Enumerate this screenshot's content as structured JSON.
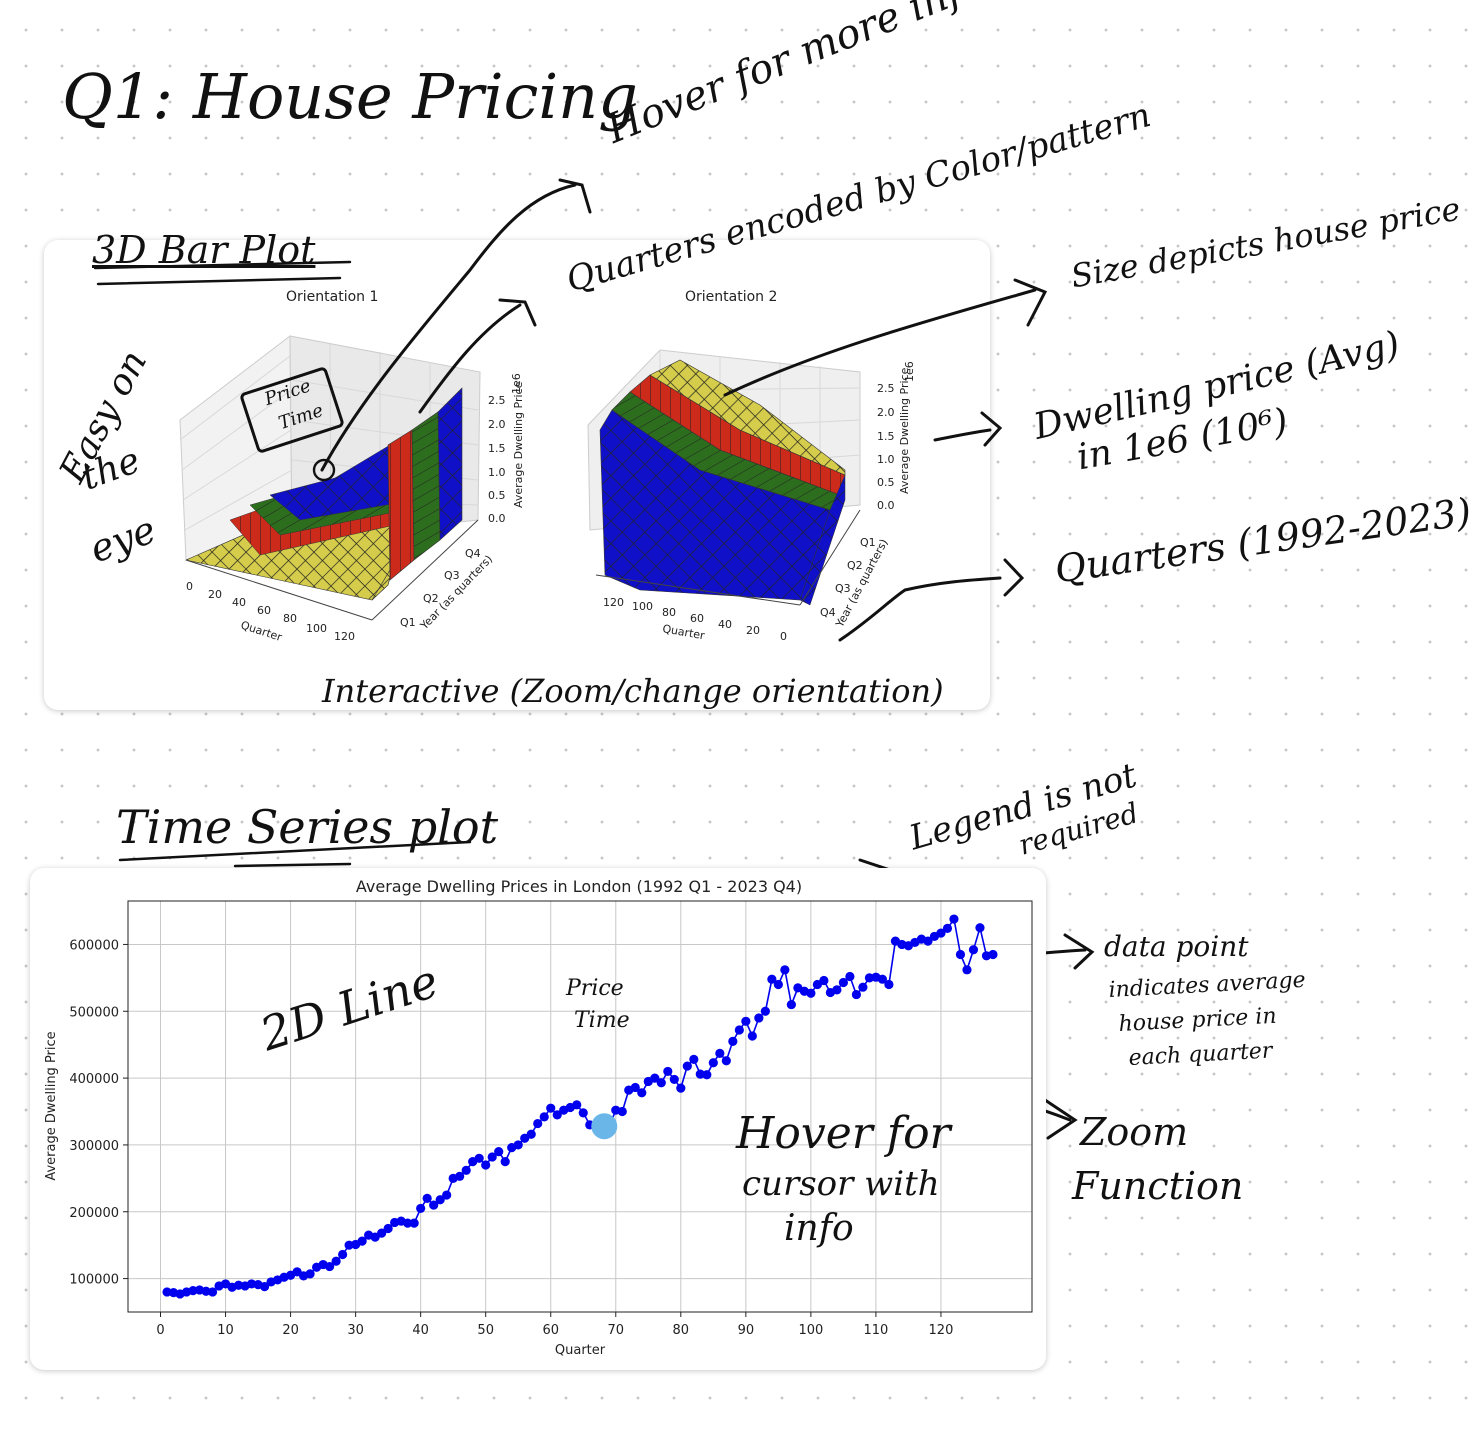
{
  "page": {
    "title": "Q1: House Pricing"
  },
  "bar3d": {
    "heading": "3D Bar Plot",
    "orientation1": {
      "title": "Orientation 1",
      "zlabel": "Average Dwelling Price",
      "exp": "1e6",
      "ylabel": "Year (as quarters)",
      "xlabel": "Quarter",
      "zticks": [
        "2.5",
        "2.0",
        "1.5",
        "1.0",
        "0.5",
        "0.0"
      ],
      "xticks": [
        "0",
        "20",
        "40",
        "60",
        "80",
        "100",
        "120"
      ],
      "yticks": [
        "Q1",
        "Q2",
        "Q3",
        "Q4"
      ]
    },
    "orientation2": {
      "title": "Orientation 2",
      "zlabel": "Average Dwelling Price",
      "exp": "1e6",
      "ylabel": "Year (as quarters)",
      "xlabel": "Quarter",
      "zticks": [
        "2.5",
        "2.0",
        "1.5",
        "1.0",
        "0.5",
        "0.0"
      ],
      "xticks": [
        "120",
        "100",
        "80",
        "60",
        "40",
        "20",
        "0"
      ],
      "yticks": [
        "Q1",
        "Q2",
        "Q3",
        "Q4"
      ]
    },
    "bar_colors": {
      "Q1": "#d4cc4a",
      "Q2": "#cc2a1a",
      "Q3": "#2d6e1e",
      "Q4": "#1010c8"
    }
  },
  "notes": {
    "hover_more_info": "Hover for more info",
    "quarters_encoded": "Quarters encoded by Color/pattern",
    "size_depicts": "Size depicts house price",
    "dwelling_price": "Dwelling price (Avg)",
    "in_1e6": "in 1e6 (10⁶)",
    "quarters_range": "Quarters (1992-2023)",
    "easy_on": "Easy on",
    "the": "the",
    "eye": "eye",
    "interactive": "Interactive (Zoom/change orientation)",
    "price_time_1": "Price",
    "price_time_2": "Time",
    "ts_heading": "Time Series plot",
    "legend_not_required_1": "Legend is not",
    "legend_not_required_2": "required",
    "twod_line": "2D Line",
    "data_point_1": "data point",
    "data_point_2": "indicates average",
    "data_point_3": "house price in",
    "data_point_4": "each quarter",
    "hover_cursor_1": "Hover for",
    "hover_cursor_2": "cursor with",
    "hover_cursor_3": "info",
    "zoom_1": "Zoom",
    "zoom_2": "Function"
  },
  "chart_data": {
    "type": "line",
    "title": "Average Dwelling Prices in London (1992 Q1 - 2023 Q4)",
    "xlabel": "Quarter",
    "ylabel": "Average Dwelling Price",
    "xlim": [
      -5,
      134
    ],
    "ylim": [
      50000,
      665000
    ],
    "xticks": [
      0,
      10,
      20,
      30,
      40,
      50,
      60,
      70,
      80,
      90,
      100,
      110,
      120
    ],
    "yticks": [
      100000,
      200000,
      300000,
      400000,
      500000,
      600000
    ],
    "grid": true,
    "color": "#0000ee",
    "highlight_color": "#6ab6e8",
    "highlight_x": 69,
    "x": [
      1,
      2,
      3,
      4,
      5,
      6,
      7,
      8,
      9,
      10,
      11,
      12,
      13,
      14,
      15,
      16,
      17,
      18,
      19,
      20,
      21,
      22,
      23,
      24,
      25,
      26,
      27,
      28,
      29,
      30,
      31,
      32,
      33,
      34,
      35,
      36,
      37,
      38,
      39,
      40,
      41,
      42,
      43,
      44,
      45,
      46,
      47,
      48,
      49,
      50,
      51,
      52,
      53,
      54,
      55,
      56,
      57,
      58,
      59,
      60,
      61,
      62,
      63,
      64,
      65,
      66,
      67,
      68,
      69,
      70,
      71,
      72,
      73,
      74,
      75,
      76,
      77,
      78,
      79,
      80,
      81,
      82,
      83,
      84,
      85,
      86,
      87,
      88,
      89,
      90,
      91,
      92,
      93,
      94,
      95,
      96,
      97,
      98,
      99,
      100,
      101,
      102,
      103,
      104,
      105,
      106,
      107,
      108,
      109,
      110,
      111,
      112,
      113,
      114,
      115,
      116,
      117,
      118,
      119,
      120,
      121,
      122,
      123,
      124,
      125,
      126,
      127,
      128
    ],
    "values": [
      80000,
      79000,
      77000,
      80000,
      82000,
      83000,
      81000,
      80000,
      89000,
      92000,
      87000,
      90000,
      89000,
      92000,
      91000,
      88000,
      95000,
      98000,
      102000,
      105000,
      110000,
      104000,
      107000,
      117000,
      121000,
      118000,
      126000,
      136000,
      150000,
      151000,
      156000,
      165000,
      162000,
      168000,
      175000,
      184000,
      186000,
      183000,
      183000,
      205000,
      220000,
      210000,
      218000,
      225000,
      250000,
      253000,
      262000,
      275000,
      280000,
      270000,
      282000,
      290000,
      275000,
      296000,
      300000,
      310000,
      316000,
      332000,
      342000,
      355000,
      345000,
      352000,
      356000,
      360000,
      348000,
      330000,
      325000,
      320000,
      328000,
      352000,
      350000,
      382000,
      386000,
      378000,
      395000,
      400000,
      393000,
      410000,
      398000,
      385000,
      418000,
      428000,
      406000,
      405000,
      423000,
      437000,
      426000,
      455000,
      472000,
      485000,
      463000,
      490000,
      500000,
      548000,
      540000,
      562000,
      510000,
      535000,
      530000,
      527000,
      540000,
      546000,
      528000,
      532000,
      543000,
      552000,
      525000,
      536000,
      550000,
      551000,
      548000,
      540000,
      605000,
      600000,
      598000,
      603000,
      608000,
      605000,
      612000,
      617000,
      624000,
      638000,
      585000,
      562000,
      592000,
      625000,
      583000,
      585000
    ]
  }
}
